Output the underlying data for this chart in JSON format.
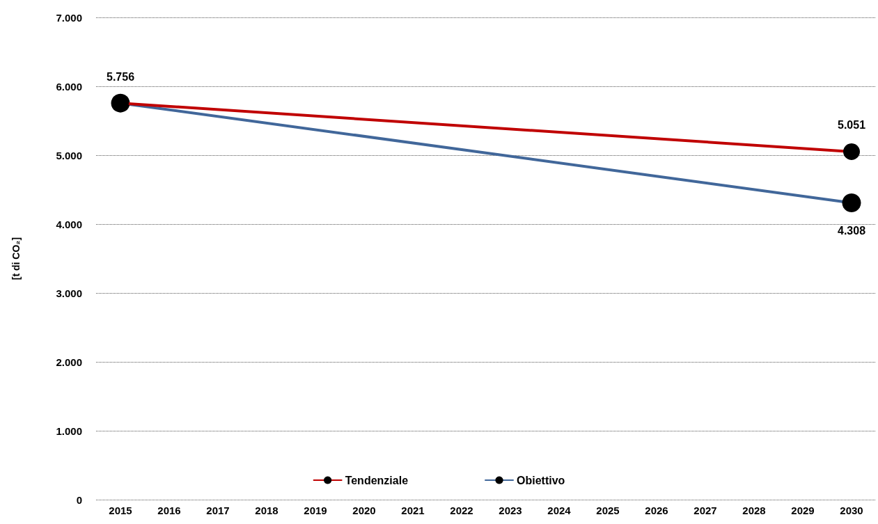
{
  "chart_data": {
    "type": "line",
    "ylabel": "[t di CO₂]",
    "categories": [
      "2015",
      "2016",
      "2017",
      "2018",
      "2019",
      "2020",
      "2021",
      "2022",
      "2023",
      "2024",
      "2025",
      "2026",
      "2027",
      "2028",
      "2029",
      "2030"
    ],
    "series": [
      {
        "name": "Tendenziale",
        "color": "#c00000",
        "values": [
          5756,
          null,
          null,
          null,
          null,
          null,
          null,
          null,
          null,
          null,
          null,
          null,
          null,
          null,
          null,
          5051
        ],
        "value_labels": [
          "5.756",
          null,
          null,
          null,
          null,
          null,
          null,
          null,
          null,
          null,
          null,
          null,
          null,
          null,
          null,
          "5.051"
        ]
      },
      {
        "name": "Obiettivo",
        "color": "#41679a",
        "values": [
          5756,
          null,
          null,
          null,
          null,
          null,
          null,
          null,
          null,
          null,
          null,
          null,
          null,
          null,
          null,
          4308
        ],
        "value_labels": [
          null,
          null,
          null,
          null,
          null,
          null,
          null,
          null,
          null,
          null,
          null,
          null,
          null,
          null,
          null,
          "4.308"
        ]
      }
    ],
    "ylim": [
      0,
      7000
    ],
    "yticks": [
      {
        "value": 0,
        "label": "0"
      },
      {
        "value": 1000,
        "label": "1.000"
      },
      {
        "value": 2000,
        "label": "2.000"
      },
      {
        "value": 3000,
        "label": "3.000"
      },
      {
        "value": 4000,
        "label": "4.000"
      },
      {
        "value": 5000,
        "label": "5.000"
      },
      {
        "value": 6000,
        "label": "6.000"
      },
      {
        "value": 7000,
        "label": "7.000"
      }
    ],
    "grid": "y",
    "legend": "bottom",
    "marker": "circle",
    "line_style": "solid"
  }
}
